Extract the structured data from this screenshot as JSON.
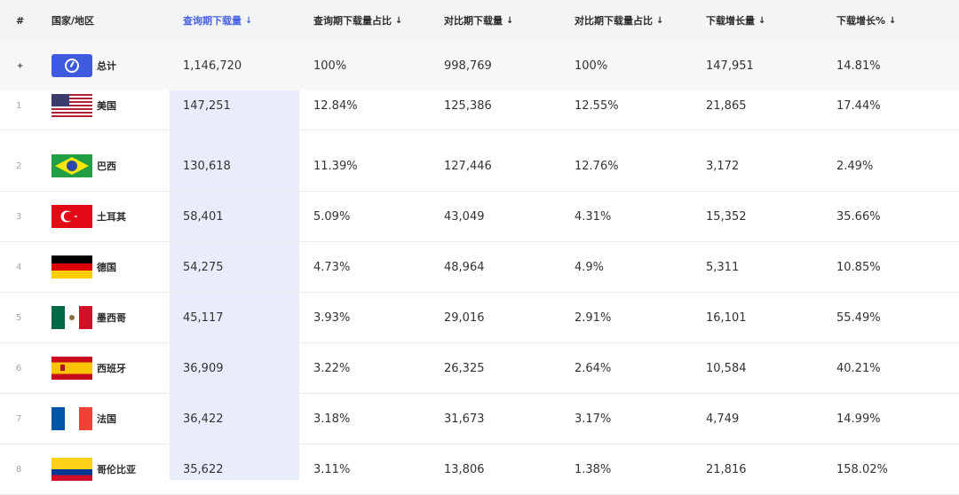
{
  "header": {
    "rank": "#",
    "country": "国家/地区",
    "query_downloads": "查询期下载量",
    "query_share": "查询期下载量占比",
    "compare_downloads": "对比期下载量",
    "compare_share": "对比期下载量占比",
    "growth": "下载增长量",
    "growth_pct": "下载增长%",
    "sort_arrow": "↓"
  },
  "total": {
    "pin": "📌",
    "label": "总计",
    "query_downloads": "1,146,720",
    "query_share": "100%",
    "compare_downloads": "998,769",
    "compare_share": "100%",
    "growth": "147,951",
    "growth_pct": "14.81%"
  },
  "rows": [
    {
      "rank": "1",
      "flag": "us-flag-icon",
      "country": "美国",
      "qd": "147,251",
      "qs": "12.84%",
      "cd": "125,386",
      "cs": "12.55%",
      "g": "21,865",
      "gp": "17.44%"
    },
    {
      "rank": "2",
      "flag": "brazil-flag-icon",
      "country": "巴西",
      "qd": "130,618",
      "qs": "11.39%",
      "cd": "127,446",
      "cs": "12.76%",
      "g": "3,172",
      "gp": "2.49%"
    },
    {
      "rank": "3",
      "flag": "turkey-flag-icon",
      "country": "土耳其",
      "qd": "58,401",
      "qs": "5.09%",
      "cd": "43,049",
      "cs": "4.31%",
      "g": "15,352",
      "gp": "35.66%"
    },
    {
      "rank": "4",
      "flag": "germany-flag-icon",
      "country": "德国",
      "qd": "54,275",
      "qs": "4.73%",
      "cd": "48,964",
      "cs": "4.9%",
      "g": "5,311",
      "gp": "10.85%"
    },
    {
      "rank": "5",
      "flag": "mexico-flag-icon",
      "country": "墨西哥",
      "qd": "45,117",
      "qs": "3.93%",
      "cd": "29,016",
      "cs": "2.91%",
      "g": "16,101",
      "gp": "55.49%"
    },
    {
      "rank": "6",
      "flag": "spain-flag-icon",
      "country": "西班牙",
      "qd": "36,909",
      "qs": "3.22%",
      "cd": "26,325",
      "cs": "2.64%",
      "g": "10,584",
      "gp": "40.21%"
    },
    {
      "rank": "7",
      "flag": "france-flag-icon",
      "country": "法国",
      "qd": "36,422",
      "qs": "3.18%",
      "cd": "31,673",
      "cs": "3.17%",
      "g": "4,749",
      "gp": "14.99%"
    },
    {
      "rank": "8",
      "flag": "colombia-flag-icon",
      "country": "哥伦比亚",
      "qd": "35,622",
      "qs": "3.11%",
      "cd": "13,806",
      "cs": "1.38%",
      "g": "21,816",
      "gp": "158.02%"
    }
  ],
  "colors": {
    "accent": "#4a63e6",
    "highlight_column": "#e9ecfb"
  }
}
